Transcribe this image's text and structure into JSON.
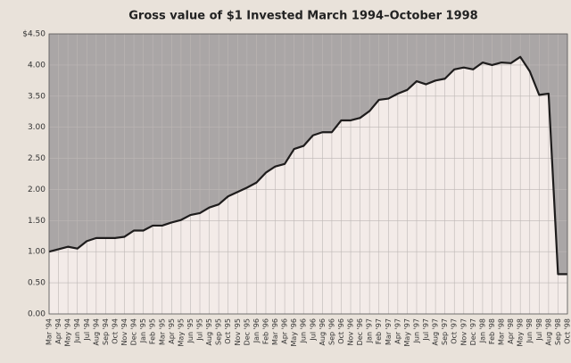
{
  "chart_data": {
    "type": "area",
    "title": "Gross value of $1 Invested March 1994–October 1998",
    "categories": [
      "Mar '94",
      "Apr '94",
      "May '94",
      "Jun '94",
      "Jul '94",
      "Aug '94",
      "Sep '94",
      "Oct '94",
      "Nov '94",
      "Dec '94",
      "Jan '95",
      "Feb '95",
      "Mar '95",
      "Apr '95",
      "May '95",
      "Jun '95",
      "Jul '95",
      "Aug '95",
      "Sep '95",
      "Oct '95",
      "Nov '95",
      "Dec '95",
      "Jan '96",
      "Feb '96",
      "Mar '96",
      "Apr '96",
      "May '96",
      "Jun '96",
      "Jul '96",
      "Aug '96",
      "Sep '96",
      "Oct '96",
      "Nov '96",
      "Dec '96",
      "Jan '97",
      "Feb '97",
      "Mar '97",
      "Apr '97",
      "May '97",
      "Jun '97",
      "Jul '97",
      "Aug '97",
      "Sep '97",
      "Oct '97",
      "Nov '97",
      "Dec '97",
      "Jan '98",
      "Feb '98",
      "Mar '98",
      "Apr '98",
      "May '98",
      "Jun '98",
      "Jul '98",
      "Aug '98",
      "Sep '98",
      "Oct '98"
    ],
    "values": [
      1.0,
      1.04,
      1.08,
      1.05,
      1.17,
      1.22,
      1.22,
      1.22,
      1.24,
      1.34,
      1.34,
      1.42,
      1.42,
      1.47,
      1.51,
      1.59,
      1.62,
      1.71,
      1.76,
      1.89,
      1.96,
      2.03,
      2.11,
      2.27,
      2.37,
      2.41,
      2.65,
      2.7,
      2.87,
      2.92,
      2.92,
      3.11,
      3.11,
      3.15,
      3.26,
      3.44,
      3.46,
      3.54,
      3.6,
      3.74,
      3.69,
      3.75,
      3.78,
      3.93,
      3.96,
      3.93,
      4.04,
      4.0,
      4.04,
      4.03,
      4.13,
      3.9,
      3.52,
      3.54,
      0.64,
      0.64
    ],
    "color": "#1e1c1c",
    "fill_color": "#f3ebe8",
    "background_color": "#aaa6a6",
    "ylim": [
      0,
      4.5
    ],
    "yticks": [
      {
        "value": 0,
        "label": "0.00"
      },
      {
        "value": 0.5,
        "label": "0.50"
      },
      {
        "value": 1,
        "label": "1.00"
      },
      {
        "value": 1.5,
        "label": "1.50"
      },
      {
        "value": 2,
        "label": "2.00"
      },
      {
        "value": 2.5,
        "label": "2.50"
      },
      {
        "value": 3,
        "label": "3.00"
      },
      {
        "value": 3.5,
        "label": "3.50"
      },
      {
        "value": 4,
        "label": "4.00"
      },
      {
        "value": 4.5,
        "label": "$4.50"
      }
    ],
    "grid": true
  }
}
